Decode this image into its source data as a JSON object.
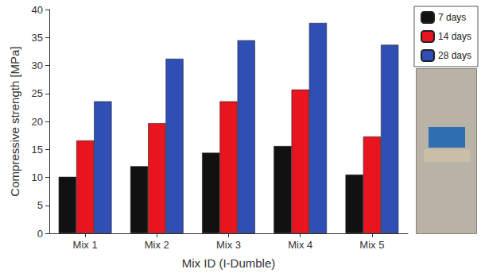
{
  "chart_data": {
    "type": "bar",
    "x_label": "Mix ID (I-Dumble)",
    "y_label": "Compressive strength [MPa]",
    "categories": [
      "Mix 1",
      "Mix 2",
      "Mix 3",
      "Mix 4",
      "Mix 5"
    ],
    "series": [
      {
        "name": "7 days",
        "color": "#111111",
        "values": [
          10.1,
          12.0,
          14.4,
          15.6,
          10.5
        ]
      },
      {
        "name": "14 days",
        "color": "#e8141e",
        "values": [
          16.6,
          19.7,
          23.6,
          25.7,
          17.3
        ]
      },
      {
        "name": "28 days",
        "color": "#2f4fb5",
        "values": [
          23.6,
          31.2,
          34.5,
          37.6,
          33.7
        ]
      }
    ],
    "ylim": [
      0,
      40
    ],
    "yticks": [
      0,
      5,
      10,
      15,
      20,
      25,
      30,
      35,
      40
    ],
    "grid": false,
    "legend": "upper right"
  }
}
